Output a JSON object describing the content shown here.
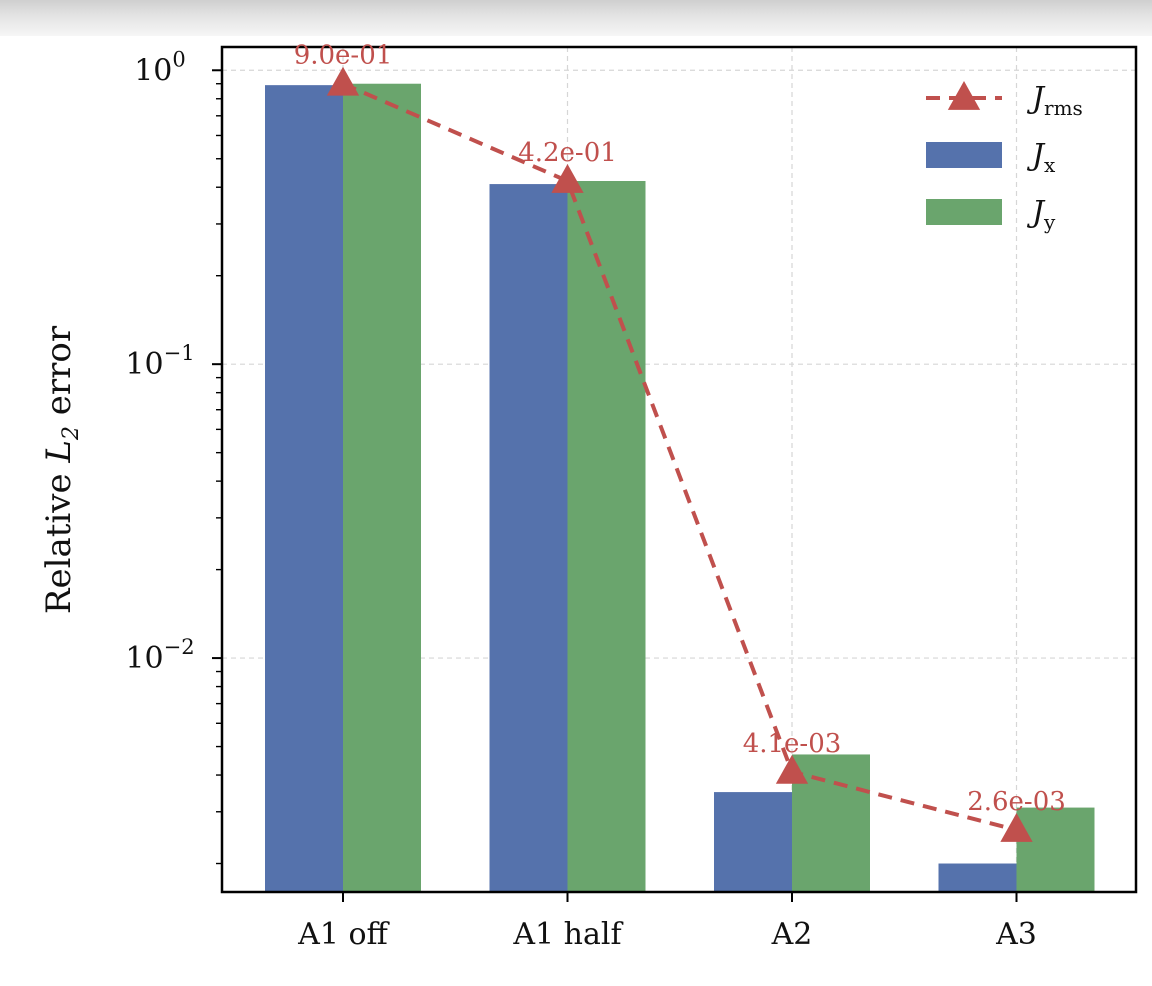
{
  "chart_data": {
    "type": "bar",
    "categories": [
      "A1 off",
      "A1 half",
      "A2",
      "A3"
    ],
    "y_scale": "log",
    "ylim": [
      0.0016,
      1.2
    ],
    "ylabel": "Relative L_2 error",
    "ylabel_parts": {
      "pre": "Relative ",
      "var": "L",
      "sub": "2",
      "post": " error"
    },
    "xlabel": "",
    "title": "",
    "grid": true,
    "legend_position": "top-right",
    "y_ticks": [
      {
        "value": 1,
        "base": "10",
        "exp": "0"
      },
      {
        "value": 0.1,
        "base": "10",
        "exp": "−1"
      },
      {
        "value": 0.01,
        "base": "10",
        "exp": "−2"
      }
    ],
    "series": [
      {
        "name": "J_x",
        "legend_var": "J",
        "legend_sub": "x",
        "kind": "bar",
        "color": "#5572ac",
        "values": [
          0.89,
          0.41,
          0.0035,
          0.002
        ]
      },
      {
        "name": "J_y",
        "legend_var": "J",
        "legend_sub": "y",
        "kind": "bar",
        "color": "#6aa56d",
        "values": [
          0.9,
          0.42,
          0.0047,
          0.0031
        ]
      },
      {
        "name": "J_rms",
        "legend_var": "J",
        "legend_sub": "rms",
        "kind": "line",
        "color": "#c0504d",
        "marker": "triangle",
        "line_style": "dashed",
        "values": [
          0.9,
          0.42,
          0.0041,
          0.0026
        ],
        "labels": [
          "9.0e-01",
          "4.2e-01",
          "4.1e-03",
          "2.6e-03"
        ]
      }
    ]
  }
}
